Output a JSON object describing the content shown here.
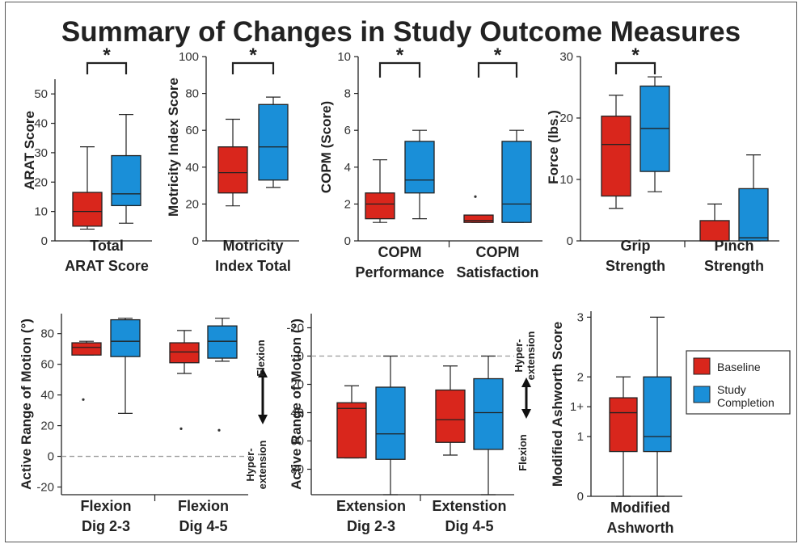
{
  "title": "Summary of Changes in Study Outcome Measures",
  "legend": {
    "placement": "right",
    "items": [
      {
        "label": "Baseline",
        "color": "#d9261c"
      },
      {
        "label": "Study Completion",
        "color": "#1a8fd8"
      }
    ]
  },
  "colors": {
    "baseline": "#d9261c",
    "completion": "#1a8fd8",
    "stroke": "#222222",
    "dashed": "#999999"
  },
  "chart_data": [
    {
      "id": "arat",
      "type": "box",
      "ylabel": "ARAT Score",
      "ylim": [
        0,
        55
      ],
      "yticks": [
        0,
        10,
        20,
        30,
        40,
        50
      ],
      "categories": [
        "Total ARAT Score"
      ],
      "significance": [
        {
          "category": 0,
          "label": "*"
        }
      ],
      "groups": [
        {
          "series": "Baseline",
          "min": 4,
          "q1": 5,
          "median": 10,
          "q3": 16.5,
          "max": 32,
          "outliers": []
        },
        {
          "series": "Study Completion",
          "min": 6,
          "q1": 12,
          "median": 16,
          "q3": 29,
          "max": 43,
          "outliers": []
        }
      ]
    },
    {
      "id": "motricity",
      "type": "box",
      "ylabel": "Motricity Index Score",
      "ylim": [
        0,
        100
      ],
      "yticks": [
        0,
        20,
        40,
        60,
        80,
        100
      ],
      "categories": [
        "Motricity Index Total"
      ],
      "significance": [
        {
          "category": 0,
          "label": "*"
        }
      ],
      "groups": [
        {
          "series": "Baseline",
          "min": 19,
          "q1": 26,
          "median": 37,
          "q3": 51,
          "max": 66,
          "outliers": []
        },
        {
          "series": "Study Completion",
          "min": 29,
          "q1": 33,
          "median": 51,
          "q3": 74,
          "max": 78,
          "outliers": []
        }
      ]
    },
    {
      "id": "copm",
      "type": "box",
      "ylabel": "COPM (Score)",
      "ylim": [
        0,
        10
      ],
      "yticks": [
        0,
        2,
        4,
        6,
        8,
        10
      ],
      "categories": [
        "COPM Performance",
        "COPM Satisfaction"
      ],
      "significance": [
        {
          "category": 0,
          "label": "*"
        },
        {
          "category": 1,
          "label": "*"
        }
      ],
      "groups": [
        {
          "category": 0,
          "series": "Baseline",
          "min": 1,
          "q1": 1.2,
          "median": 2,
          "q3": 2.6,
          "max": 4.4,
          "outliers": []
        },
        {
          "category": 0,
          "series": "Study Completion",
          "min": 1.2,
          "q1": 2.6,
          "median": 3.3,
          "q3": 5.4,
          "max": 6,
          "outliers": []
        },
        {
          "category": 1,
          "series": "Baseline",
          "min": 1,
          "q1": 1,
          "median": 1.1,
          "q3": 1.4,
          "max": 1.4,
          "outliers": [
            2.4
          ]
        },
        {
          "category": 1,
          "series": "Study Completion",
          "min": 1,
          "q1": 1,
          "median": 2,
          "q3": 5.4,
          "max": 6,
          "outliers": []
        }
      ]
    },
    {
      "id": "force",
      "type": "box",
      "ylabel": "Force (lbs.)",
      "ylim": [
        0,
        30
      ],
      "yticks": [
        0,
        10,
        20,
        30
      ],
      "categories": [
        "Grip Strength",
        "Pinch Strength"
      ],
      "significance": [
        {
          "category": 0,
          "label": "*"
        }
      ],
      "groups": [
        {
          "category": 0,
          "series": "Baseline",
          "min": 5.3,
          "q1": 7.3,
          "median": 15.7,
          "q3": 20.3,
          "max": 23.7,
          "outliers": []
        },
        {
          "category": 0,
          "series": "Study Completion",
          "min": 8,
          "q1": 11.3,
          "median": 18.3,
          "q3": 25.2,
          "max": 26.7,
          "outliers": []
        },
        {
          "category": 1,
          "series": "Baseline",
          "min": 0,
          "q1": 0,
          "median": 0,
          "q3": 3.3,
          "max": 6,
          "outliers": []
        },
        {
          "category": 1,
          "series": "Study Completion",
          "min": 0,
          "q1": 0,
          "median": 0.5,
          "q3": 8.5,
          "max": 14,
          "outliers": []
        }
      ]
    },
    {
      "id": "arom-flexion",
      "type": "box",
      "ylabel": "Active Range of Motion (°)",
      "ylim": [
        -25,
        93
      ],
      "yticks": [
        -20,
        0,
        20,
        40,
        60,
        80
      ],
      "reference_line": 0,
      "categories": [
        "Flexion Dig 2-3",
        "Flexion Dig 4-5"
      ],
      "annotations": {
        "upper": "Flexion",
        "lower": "Hyper-extension"
      },
      "groups": [
        {
          "category": 0,
          "series": "Baseline",
          "min": 66,
          "q1": 66,
          "median": 71,
          "q3": 74,
          "max": 75,
          "outliers": [
            37
          ]
        },
        {
          "category": 0,
          "series": "Study Completion",
          "min": 28,
          "q1": 65,
          "median": 75,
          "q3": 89,
          "max": 90,
          "outliers": []
        },
        {
          "category": 1,
          "series": "Baseline",
          "min": 54,
          "q1": 61,
          "median": 68,
          "q3": 74,
          "max": 82,
          "outliers": [
            18
          ]
        },
        {
          "category": 1,
          "series": "Study Completion",
          "min": 62,
          "q1": 64,
          "median": 75,
          "q3": 85,
          "max": 90,
          "outliers": [
            17
          ]
        }
      ]
    },
    {
      "id": "arom-extension",
      "type": "box",
      "ylabel": "Active Range of Motion (°)",
      "ylim": [
        -30,
        98
      ],
      "yticks": [
        -20,
        0,
        20,
        40,
        60,
        80
      ],
      "reversed": true,
      "reference_line": 0,
      "categories": [
        "Extension Dig 2-3",
        "Extenstion Dig 4-5"
      ],
      "annotations": {
        "upper": "Hyper-extension",
        "lower": "Flexion"
      },
      "groups": [
        {
          "category": 0,
          "series": "Baseline",
          "min": 21,
          "q1": 33,
          "median": 37,
          "q3": 72,
          "max": 72,
          "outliers": []
        },
        {
          "category": 0,
          "series": "Study Completion",
          "min": 0,
          "q1": 22,
          "median": 55,
          "q3": 73,
          "max": 98,
          "outliers": []
        },
        {
          "category": 1,
          "series": "Baseline",
          "min": 7,
          "q1": 24,
          "median": 45,
          "q3": 61,
          "max": 70,
          "outliers": []
        },
        {
          "category": 1,
          "series": "Study Completion",
          "min": 0,
          "q1": 16,
          "median": 40,
          "q3": 66,
          "max": 98,
          "outliers": []
        }
      ]
    },
    {
      "id": "ashworth",
      "type": "box",
      "ylabel": "Modified Ashworth Score",
      "ylim": [
        0,
        3.1
      ],
      "yticks": [
        0,
        1,
        1.5,
        2,
        3
      ],
      "ytick_labels": [
        "0",
        "1",
        "1+",
        "2",
        "3"
      ],
      "categories": [
        "Modified Ashworth"
      ],
      "groups": [
        {
          "category": 0,
          "series": "Baseline",
          "min": 0,
          "q1": 0.75,
          "median": 1.4,
          "q3": 1.65,
          "max": 2,
          "outliers": []
        },
        {
          "category": 0,
          "series": "Study Completion",
          "min": 0,
          "q1": 0.75,
          "median": 1,
          "q3": 2,
          "max": 3,
          "outliers": []
        }
      ]
    }
  ]
}
